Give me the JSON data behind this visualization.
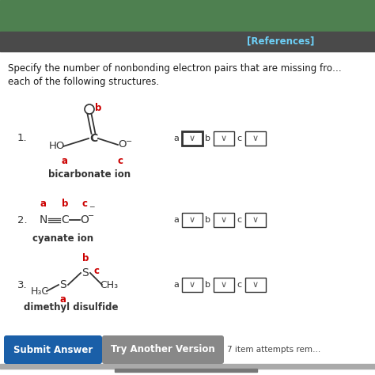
{
  "bg_top_color": "#4e8050",
  "references_bar_color": "#4a4a4a",
  "references_text": "[References]",
  "references_text_color": "#6dcff6",
  "question_line1": "Specify the number of nonbonding electron pairs that are missing fro…",
  "question_line2": "each of the following structures.",
  "body_bg": "#ffffff",
  "label_color": "#cc0000",
  "structure_color": "#333333",
  "submit_btn_color": "#1a5fa8",
  "submit_btn_text": "Submit Answer",
  "try_btn_color": "#888888",
  "try_btn_text": "Try Another Version",
  "attempts_text": "7 item attempts rem…",
  "bottom_bar_color": "#aaaaaa"
}
